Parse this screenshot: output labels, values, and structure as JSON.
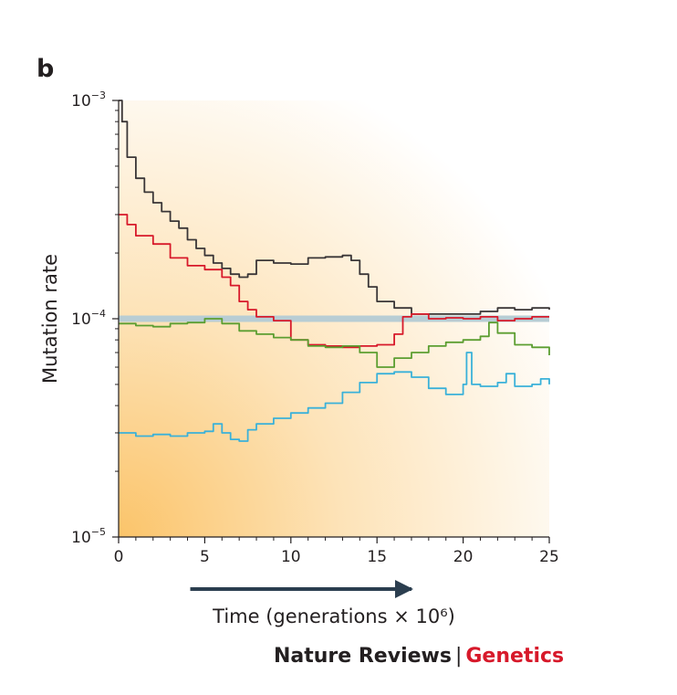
{
  "panel_label": "b",
  "footer": {
    "publisher": "Nature Reviews",
    "separator": "|",
    "journal": "Genetics"
  },
  "colors": {
    "axis": "#231f20",
    "background_gradient": [
      "#fbc46a",
      "#ffffff"
    ],
    "reference_line": "#b8cdd4",
    "arrow": "#2b3e4f"
  },
  "chart_data": {
    "type": "line",
    "title": "",
    "xlabel": "Time (generations × 10⁶)",
    "ylabel": "Mutation rate",
    "xlim": [
      0,
      25
    ],
    "ylim": [
      1e-05,
      0.001
    ],
    "yscale": "log",
    "x_ticks": [
      "0",
      "5",
      "10",
      "15",
      "20",
      "25"
    ],
    "y_tick_labels": [
      {
        "base": "10",
        "exp": "−5",
        "value": 1e-05
      },
      {
        "base": "10",
        "exp": "−4",
        "value": 0.0001
      },
      {
        "base": "10",
        "exp": "−3",
        "value": 0.001
      }
    ],
    "reference_line": {
      "y": 0.0001
    },
    "time_arrow": {
      "from": 4,
      "to": 17
    },
    "series": [
      {
        "color": "#3a3637",
        "points": [
          [
            0,
            0.001
          ],
          [
            0.2,
            0.0008
          ],
          [
            0.5,
            0.00055
          ],
          [
            1,
            0.00044
          ],
          [
            1.5,
            0.00038
          ],
          [
            2,
            0.00034
          ],
          [
            2.5,
            0.00031
          ],
          [
            3,
            0.00028
          ],
          [
            3.5,
            0.00026
          ],
          [
            4,
            0.00023
          ],
          [
            4.5,
            0.00021
          ],
          [
            5,
            0.000195
          ],
          [
            5.5,
            0.00018
          ],
          [
            6,
            0.00017
          ],
          [
            6.5,
            0.00016
          ],
          [
            7,
            0.000155
          ],
          [
            7.5,
            0.00016
          ],
          [
            8,
            0.000185
          ],
          [
            9,
            0.00018
          ],
          [
            10,
            0.000178
          ],
          [
            11,
            0.00019
          ],
          [
            12,
            0.000192
          ],
          [
            13,
            0.000195
          ],
          [
            13.5,
            0.000185
          ],
          [
            14,
            0.00016
          ],
          [
            14.5,
            0.00014
          ],
          [
            15,
            0.00012
          ],
          [
            16,
            0.000112
          ],
          [
            17,
            0.000105
          ],
          [
            18,
            0.000105
          ],
          [
            19,
            0.000105
          ],
          [
            20,
            0.000105
          ],
          [
            21,
            0.000108
          ],
          [
            22,
            0.000112
          ],
          [
            23,
            0.00011
          ],
          [
            24,
            0.000112
          ],
          [
            25,
            0.00011
          ]
        ]
      },
      {
        "color": "#d7192a",
        "points": [
          [
            0,
            0.0003
          ],
          [
            0.5,
            0.00027
          ],
          [
            1,
            0.00024
          ],
          [
            2,
            0.00022
          ],
          [
            3,
            0.00019
          ],
          [
            4,
            0.000175
          ],
          [
            5,
            0.000168
          ],
          [
            6,
            0.000155
          ],
          [
            6.5,
            0.000142
          ],
          [
            7,
            0.00012
          ],
          [
            7.5,
            0.00011
          ],
          [
            8,
            0.000102
          ],
          [
            9,
            9.8e-05
          ],
          [
            10,
            8e-05
          ],
          [
            11,
            7.6e-05
          ],
          [
            12,
            7.5e-05
          ],
          [
            13,
            7.4e-05
          ],
          [
            14,
            7.5e-05
          ],
          [
            15,
            7.6e-05
          ],
          [
            16,
            8.5e-05
          ],
          [
            16.5,
            0.000102
          ],
          [
            17,
            0.000105
          ],
          [
            18,
            0.0001
          ],
          [
            19,
            0.000101
          ],
          [
            20,
            0.0001
          ],
          [
            21,
            0.000102
          ],
          [
            22,
            9.8e-05
          ],
          [
            23,
            0.0001
          ],
          [
            24,
            0.000102
          ],
          [
            25,
            0.000102
          ]
        ]
      },
      {
        "color": "#5c9e31",
        "points": [
          [
            0,
            9.5e-05
          ],
          [
            1,
            9.3e-05
          ],
          [
            2,
            9.2e-05
          ],
          [
            3,
            9.5e-05
          ],
          [
            4,
            9.6e-05
          ],
          [
            5,
            0.0001
          ],
          [
            6,
            9.5e-05
          ],
          [
            7,
            8.8e-05
          ],
          [
            8,
            8.5e-05
          ],
          [
            9,
            8.2e-05
          ],
          [
            10,
            8e-05
          ],
          [
            11,
            7.5e-05
          ],
          [
            12,
            7.4e-05
          ],
          [
            13,
            7.5e-05
          ],
          [
            14,
            7e-05
          ],
          [
            15,
            6e-05
          ],
          [
            16,
            6.6e-05
          ],
          [
            17,
            7e-05
          ],
          [
            18,
            7.5e-05
          ],
          [
            19,
            7.8e-05
          ],
          [
            20,
            8e-05
          ],
          [
            21,
            8.3e-05
          ],
          [
            21.5,
            9.6e-05
          ],
          [
            22,
            8.6e-05
          ],
          [
            23,
            7.6e-05
          ],
          [
            24,
            7.4e-05
          ],
          [
            25,
            6.8e-05
          ]
        ]
      },
      {
        "color": "#3ab1d9",
        "points": [
          [
            0,
            3e-05
          ],
          [
            1,
            2.9e-05
          ],
          [
            2,
            2.95e-05
          ],
          [
            3,
            2.9e-05
          ],
          [
            4,
            3e-05
          ],
          [
            5,
            3.05e-05
          ],
          [
            5.5,
            3.3e-05
          ],
          [
            6,
            3e-05
          ],
          [
            6.5,
            2.8e-05
          ],
          [
            7,
            2.75e-05
          ],
          [
            7.5,
            3.1e-05
          ],
          [
            8,
            3.3e-05
          ],
          [
            9,
            3.5e-05
          ],
          [
            10,
            3.7e-05
          ],
          [
            11,
            3.9e-05
          ],
          [
            12,
            4.1e-05
          ],
          [
            13,
            4.6e-05
          ],
          [
            14,
            5.1e-05
          ],
          [
            15,
            5.6e-05
          ],
          [
            16,
            5.7e-05
          ],
          [
            17,
            5.4e-05
          ],
          [
            18,
            4.8e-05
          ],
          [
            19,
            4.5e-05
          ],
          [
            20,
            5e-05
          ],
          [
            20.2,
            7e-05
          ],
          [
            20.5,
            5e-05
          ],
          [
            21,
            4.9e-05
          ],
          [
            22,
            5.1e-05
          ],
          [
            22.5,
            5.6e-05
          ],
          [
            23,
            4.9e-05
          ],
          [
            24,
            5e-05
          ],
          [
            24.5,
            5.3e-05
          ],
          [
            25,
            5e-05
          ]
        ]
      }
    ]
  }
}
